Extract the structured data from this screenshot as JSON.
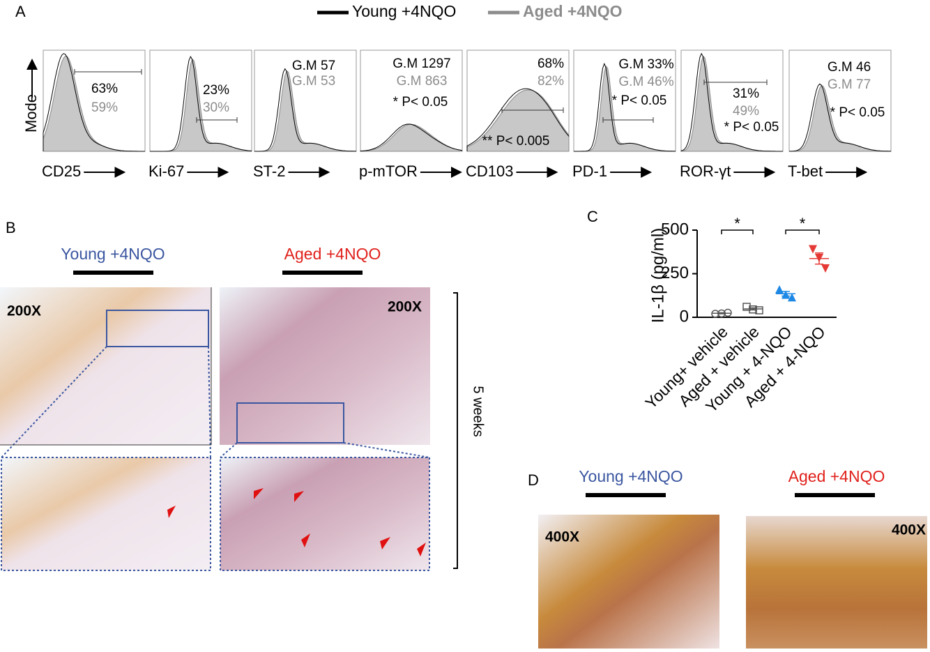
{
  "panel_a": {
    "label": "A",
    "legend": [
      {
        "name": "Young +4NQO",
        "color": "#000000"
      },
      {
        "name": "Aged +4NQO",
        "color": "#8c8c8c"
      }
    ],
    "y_label": "Mode",
    "plots": [
      {
        "marker": "CD25",
        "texts": [
          {
            "text": "63%",
            "color": "#000000"
          },
          {
            "text": "59%",
            "color": "#8c8c8c"
          }
        ]
      },
      {
        "marker": "Ki-67",
        "texts": [
          {
            "text": "23%",
            "color": "#000000"
          },
          {
            "text": "30%",
            "color": "#8c8c8c"
          }
        ]
      },
      {
        "marker": "ST-2",
        "texts": [
          {
            "text": "G.M 57",
            "color": "#000000"
          },
          {
            "text": "G.M 53",
            "color": "#8c8c8c"
          }
        ]
      },
      {
        "marker": "p-mTOR",
        "texts": [
          {
            "text": "G.M 1297",
            "color": "#000000"
          },
          {
            "text": "G.M 863",
            "color": "#8c8c8c"
          },
          {
            "text": "* P< 0.05",
            "color": "#000000"
          }
        ]
      },
      {
        "marker": "CD103",
        "texts": [
          {
            "text": "68%",
            "color": "#000000"
          },
          {
            "text": "82%",
            "color": "#8c8c8c"
          },
          {
            "text": "** P< 0.005",
            "color": "#000000"
          }
        ]
      },
      {
        "marker": "PD-1",
        "texts": [
          {
            "text": "G.M 33%",
            "color": "#000000"
          },
          {
            "text": "G.M 46%",
            "color": "#8c8c8c"
          },
          {
            "text": "* P< 0.05",
            "color": "#000000"
          }
        ]
      },
      {
        "marker": "ROR-γt",
        "texts": [
          {
            "text": "31%",
            "color": "#000000"
          },
          {
            "text": "49%",
            "color": "#8c8c8c"
          },
          {
            "text": "* P< 0.05",
            "color": "#000000"
          }
        ]
      },
      {
        "marker": "T-bet",
        "texts": [
          {
            "text": "G.M 46",
            "color": "#000000"
          },
          {
            "text": "G.M 77",
            "color": "#8c8c8c"
          },
          {
            "text": "* P< 0.05",
            "color": "#000000"
          }
        ]
      }
    ]
  },
  "panel_b": {
    "label": "B",
    "columns": [
      {
        "name": "Young +4NQO",
        "color": "#3a56a0"
      },
      {
        "name": "Aged +4NQO",
        "color": "#e0201b"
      }
    ],
    "magnifications": [
      "200X",
      "200X"
    ],
    "side_label": "5 weeks"
  },
  "chart_data": {
    "type": "scatter",
    "label": "C",
    "y_label": "IL-1β (pg/ml)",
    "categories": [
      "Young+ vehicle",
      "Aged + vehicle",
      "Young + 4-NQO",
      "Aged + 4-NQO"
    ],
    "points": [
      [
        20,
        22,
        26
      ],
      [
        60,
        45,
        40
      ],
      [
        160,
        130,
        115
      ],
      [
        390,
        340,
        280
      ]
    ],
    "means": [
      23,
      48,
      135,
      337
    ],
    "errors": [
      3,
      6,
      13,
      32
    ],
    "colors": [
      "#555555",
      "#555555",
      "#1e88e5",
      "#e53935"
    ],
    "markers": [
      "circle",
      "square",
      "triangle",
      "triangle-down"
    ],
    "significance": [
      "*",
      "*"
    ],
    "ylim": [
      0,
      500
    ],
    "yticks": [
      0,
      250,
      500
    ]
  },
  "panel_d": {
    "label": "D",
    "columns": [
      {
        "name": "Young +4NQO",
        "color": "#3a56a0"
      },
      {
        "name": "Aged +4NQO",
        "color": "#e0201b"
      }
    ],
    "magnifications": [
      "400X",
      "400X"
    ]
  }
}
